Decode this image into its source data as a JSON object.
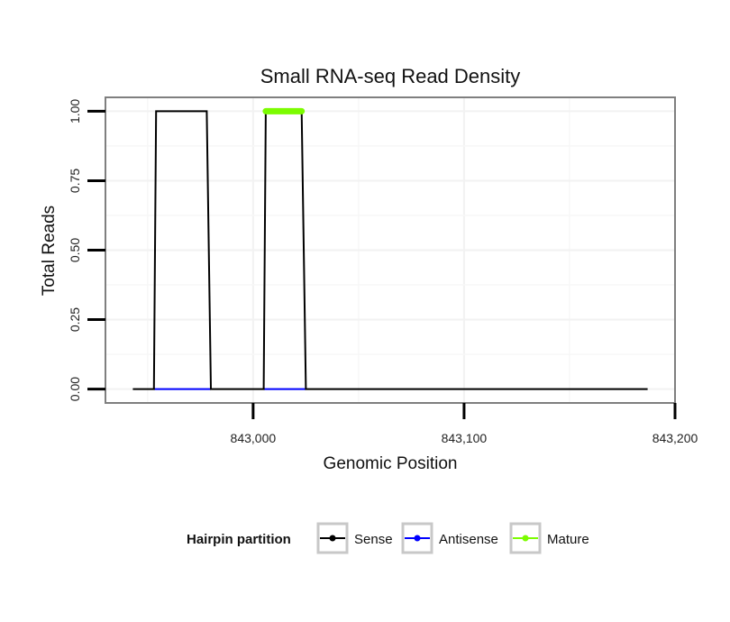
{
  "chart_data": {
    "type": "line",
    "title": "Small RNA-seq Read Density",
    "xlabel": "Genomic Position",
    "ylabel": "Total Reads",
    "xlim": [
      842930,
      843200
    ],
    "ylim": [
      -0.05,
      1.05
    ],
    "x_ticks": [
      843000,
      843100,
      843200
    ],
    "x_tick_labels": [
      "843,000",
      "843,100",
      "843,200"
    ],
    "y_ticks": [
      0,
      0.25,
      0.5,
      0.75,
      1.0
    ],
    "y_tick_labels": [
      "0.00",
      "0.25",
      "0.50",
      "0.75",
      "1.00"
    ],
    "grid": true,
    "legend": {
      "title": "Hairpin partition",
      "position": "bottom"
    },
    "series": [
      {
        "name": "Sense",
        "color": "#000000",
        "x": [
          842943,
          842953,
          842954,
          842978,
          842980,
          843005,
          843006,
          843023,
          843025,
          843187
        ],
        "y": [
          0,
          0,
          1,
          1,
          0,
          0,
          1,
          1,
          0,
          0
        ]
      },
      {
        "name": "Antisense",
        "color": "#0000ff",
        "x": [
          842953,
          842980,
          843005,
          843025
        ],
        "y": [
          0,
          0,
          0,
          0
        ],
        "segments": [
          [
            0,
            1
          ],
          [
            2,
            3
          ]
        ]
      },
      {
        "name": "Mature",
        "color": "#7cfc00",
        "x": [
          843006,
          843023
        ],
        "y": [
          1,
          1
        ]
      }
    ]
  }
}
